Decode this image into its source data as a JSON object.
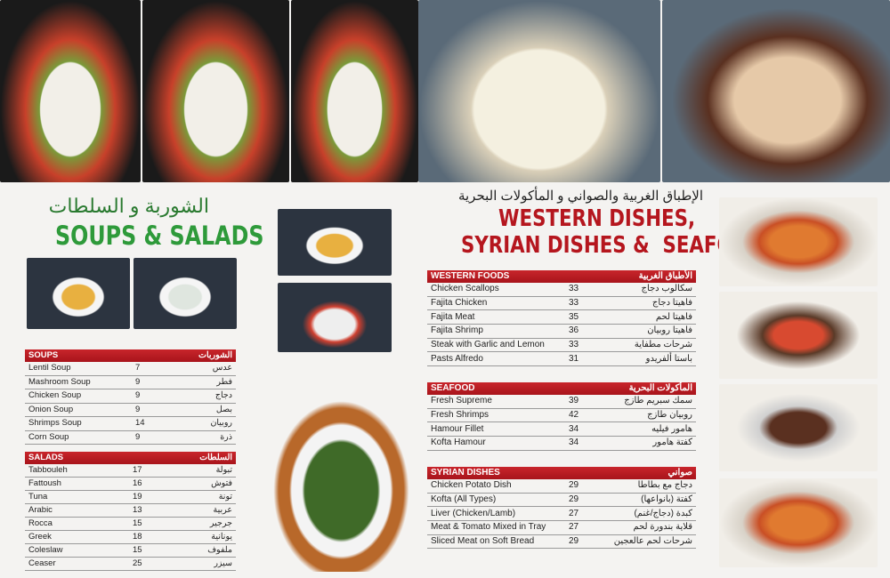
{
  "left_page": {
    "title_ar": "الشوربة و السلطات",
    "title_en": "SOUPS & SALADS",
    "soups": {
      "title_en": "SOUPS",
      "title_ar": "الشوربات",
      "items": [
        {
          "en": "Lentil Soup",
          "price": "7",
          "ar": "عدس"
        },
        {
          "en": "Mashroom Soup",
          "price": "9",
          "ar": "فطر"
        },
        {
          "en": "Chicken Soup",
          "price": "9",
          "ar": "دجاج"
        },
        {
          "en": "Onion Soup",
          "price": "9",
          "ar": "بصل"
        },
        {
          "en": "Shrimps Soup",
          "price": "14",
          "ar": "روبيان"
        },
        {
          "en": "Corn Soup",
          "price": "9",
          "ar": "ذرة"
        }
      ]
    },
    "salads": {
      "title_en": "SALADS",
      "title_ar": "السلطات",
      "items": [
        {
          "en": "Tabbouleh",
          "price": "17",
          "ar": "تبولة"
        },
        {
          "en": "Fattoush",
          "price": "16",
          "ar": "فتوش"
        },
        {
          "en": "Tuna",
          "price": "19",
          "ar": "تونة"
        },
        {
          "en": "Arabic",
          "price": "13",
          "ar": "عربية"
        },
        {
          "en": "Rocca",
          "price": "15",
          "ar": "جرجير"
        },
        {
          "en": "Greek",
          "price": "18",
          "ar": "يونانية"
        },
        {
          "en": "Coleslaw",
          "price": "15",
          "ar": "ملفوف"
        },
        {
          "en": "Ceaser",
          "price": "25",
          "ar": "سيزر"
        }
      ]
    }
  },
  "right_page": {
    "title_ar": "الإطباق الغربية والصواني و المأكولات البحرية",
    "title_en_1": "WESTERN DISHES,",
    "title_en_2": "SYRIAN DISHES &  SEAFOOD",
    "western": {
      "title_en": "WESTERN FOODS",
      "title_ar": "الأطباق الغربية",
      "items": [
        {
          "en": "Chicken Scallops",
          "price": "33",
          "ar": "سكالوب دجاج"
        },
        {
          "en": "Fajita Chicken",
          "price": "33",
          "ar": "فاهيتا دجاج"
        },
        {
          "en": "Fajita Meat",
          "price": "35",
          "ar": "فاهيتا لحم"
        },
        {
          "en": "Fajita Shrimp",
          "price": "36",
          "ar": "فاهيتا روبيان"
        },
        {
          "en": "Steak with Garlic and Lemon",
          "price": "33",
          "ar": "شرحات مطفاية"
        },
        {
          "en": "Pasts Alfredo",
          "price": "31",
          "ar": "باستا ألفريدو"
        }
      ]
    },
    "seafood": {
      "title_en": "SEAFOOD",
      "title_ar": "المأكولات البحرية",
      "items": [
        {
          "en": "Fresh Supreme",
          "price": "39",
          "ar": "سمك سبريم طازج"
        },
        {
          "en": "Fresh Shrimps",
          "price": "42",
          "ar": "روبيان طازج"
        },
        {
          "en": "Hamour Fillet",
          "price": "34",
          "ar": "هامور فيليه"
        },
        {
          "en": "Kofta Hamour",
          "price": "34",
          "ar": "كفتة هامور"
        }
      ]
    },
    "syrian": {
      "title_en": "SYRIAN DISHES",
      "title_ar": "صواني",
      "items": [
        {
          "en": "Chicken Potato Dish",
          "price": "29",
          "ar": "دجاج مع بطاطا"
        },
        {
          "en": "Kofta (All Types)",
          "price": "29",
          "ar": "كفتة (بانواعها)"
        },
        {
          "en": "Liver (Chicken/Lamb)",
          "price": "27",
          "ar": "كبدة (دجاج/غنم)"
        },
        {
          "en": "Meat & Tomato Mixed in Tray",
          "price": "27",
          "ar": "قلاية بندورة لحم"
        },
        {
          "en": "Sliced Meat on Soft Bread",
          "price": "29",
          "ar": "شرحات لحم عالعجين"
        }
      ]
    }
  },
  "colors": {
    "accent_red": "#b5161e",
    "title_green": "#2e9a3a"
  }
}
